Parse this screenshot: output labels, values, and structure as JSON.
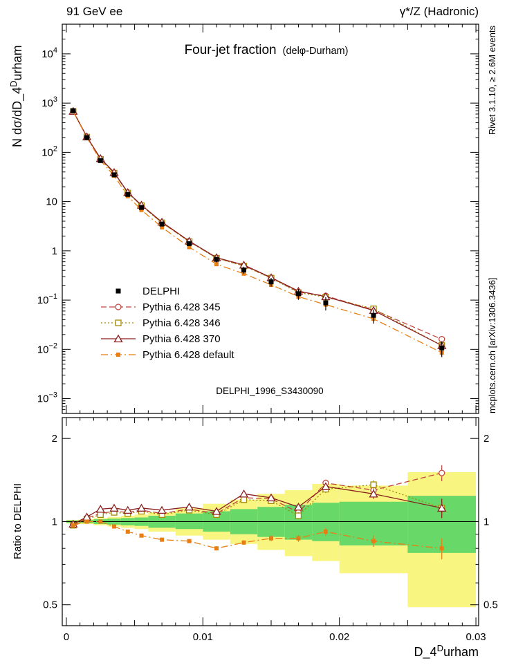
{
  "header": {
    "left": "91 GeV ee",
    "right": "γ*/Z (Hadronic)"
  },
  "title": {
    "main": "Four-jet fraction",
    "sub": "(delφ-Durham)"
  },
  "watermark": "DELPHI_1996_S3430090",
  "side_notes": {
    "top": "Rivet 3.1.10, ≥ 2.6M events",
    "bottom": "mcplots.cern.ch [arXiv:1306.3436]"
  },
  "axes": {
    "x_label": {
      "pre": "D_4",
      "sup": "D",
      "post": "urham"
    },
    "y_label": {
      "pre": "N dσ/dD_4",
      "sup": "D",
      "post": "urham"
    },
    "ratio_label": "Ratio to DELPHI"
  },
  "chart_data": {
    "type": "line",
    "title": "Four-jet fraction (delφ-Durham)",
    "xlabel": "D_4^Durham",
    "ylabel": "N dσ/dD_4^Durham",
    "ratio_ylabel": "Ratio to DELPHI",
    "legend_position": "middle-left",
    "grid": false,
    "xlim": [
      -0.0003,
      0.0302
    ],
    "x_ticks": [
      0,
      0.01,
      0.02,
      0.03
    ],
    "x_tick_labels": [
      "0",
      "0.01",
      "0.02",
      "0.03"
    ],
    "x_bin_edges": [
      0,
      0.001,
      0.002,
      0.003,
      0.004,
      0.005,
      0.006,
      0.008,
      0.01,
      0.012,
      0.014,
      0.016,
      0.018,
      0.02,
      0.025,
      0.03
    ],
    "x_centers": [
      0.0005,
      0.0015,
      0.0025,
      0.0035,
      0.0045,
      0.0055,
      0.007,
      0.009,
      0.011,
      0.013,
      0.015,
      0.017,
      0.019,
      0.0225,
      0.0275
    ],
    "delphi_label": "DELPHI",
    "main": {
      "ylog": true,
      "ylim": [
        0.0005,
        40000
      ],
      "y_tick_exponents": [
        4,
        3,
        2,
        1,
        0,
        -1,
        -2,
        -3
      ],
      "delphi": {
        "values": [
          700,
          200,
          68,
          35,
          14,
          7.6,
          3.5,
          1.4,
          0.67,
          0.41,
          0.235,
          0.135,
          0.088,
          0.049,
          0.0107
        ],
        "err_frac": [
          0.02,
          0.02,
          0.03,
          0.04,
          0.05,
          0.06,
          0.08,
          0.1,
          0.13,
          0.16,
          0.2,
          0.25,
          0.3,
          0.32,
          0.35
        ]
      }
    },
    "ratio": {
      "ylog": true,
      "ylim": [
        0.42,
        2.38
      ],
      "y_ticks": [
        2,
        1,
        0.5
      ],
      "bands": {
        "yellow": {
          "color": "#f9f581",
          "lo": [
            0.985,
            0.98,
            0.97,
            0.96,
            0.95,
            0.94,
            0.92,
            0.89,
            0.86,
            0.83,
            0.79,
            0.75,
            0.72,
            0.65,
            0.49
          ],
          "hi": [
            1.015,
            1.02,
            1.03,
            1.04,
            1.05,
            1.06,
            1.08,
            1.12,
            1.16,
            1.2,
            1.26,
            1.3,
            1.37,
            1.35,
            1.51
          ]
        },
        "green": {
          "color": "#68d968",
          "lo": [
            0.99,
            0.988,
            0.98,
            0.975,
            0.97,
            0.965,
            0.95,
            0.94,
            0.92,
            0.9,
            0.88,
            0.86,
            0.85,
            0.82,
            0.77
          ],
          "hi": [
            1.01,
            1.012,
            1.02,
            1.025,
            1.03,
            1.035,
            1.05,
            1.07,
            1.09,
            1.11,
            1.13,
            1.15,
            1.17,
            1.18,
            1.24
          ]
        }
      }
    },
    "series": [
      {
        "id": "pythia-345",
        "name": "Pythia 6.428 345",
        "color": "#c04540",
        "dash": "8,4",
        "marker": "circle-open",
        "ratio": [
          0.97,
          1.03,
          1.07,
          1.09,
          1.08,
          1.1,
          1.07,
          1.11,
          1.07,
          1.22,
          1.21,
          1.08,
          1.38,
          1.3,
          1.5
        ],
        "ratio_err": [
          0.01,
          0.01,
          0.01,
          0.01,
          0.01,
          0.012,
          0.012,
          0.015,
          0.018,
          0.02,
          0.025,
          0.03,
          0.04,
          0.05,
          0.1
        ]
      },
      {
        "id": "pythia-346",
        "name": "Pythia 6.428 346",
        "color": "#a08900",
        "dash": "2,3",
        "marker": "square-open",
        "ratio": [
          0.97,
          1.02,
          1.06,
          1.08,
          1.07,
          1.09,
          1.06,
          1.1,
          1.06,
          1.2,
          1.19,
          1.05,
          1.31,
          1.36,
          1.12
        ],
        "ratio_err": [
          0.01,
          0.01,
          0.01,
          0.01,
          0.01,
          0.012,
          0.012,
          0.015,
          0.018,
          0.02,
          0.025,
          0.03,
          0.04,
          0.05,
          0.09
        ]
      },
      {
        "id": "pythia-370",
        "name": "Pythia 6.428 370",
        "color": "#8a1f1f",
        "dash": "",
        "marker": "triangle-open",
        "ratio": [
          0.98,
          1.04,
          1.11,
          1.12,
          1.1,
          1.12,
          1.1,
          1.13,
          1.09,
          1.26,
          1.22,
          1.13,
          1.34,
          1.26,
          1.12
        ],
        "ratio_err": [
          0.01,
          0.01,
          0.01,
          0.01,
          0.01,
          0.012,
          0.012,
          0.015,
          0.018,
          0.02,
          0.025,
          0.03,
          0.04,
          0.05,
          0.09
        ]
      },
      {
        "id": "pythia-default",
        "name": "Pythia 6.428 default",
        "color": "#e87d12",
        "dash": "10,4,2,4",
        "marker": "square-fill",
        "ratio": [
          0.97,
          1.0,
          1.0,
          0.96,
          0.92,
          0.89,
          0.86,
          0.85,
          0.8,
          0.84,
          0.87,
          0.87,
          0.92,
          0.85,
          0.8
        ],
        "ratio_err": [
          0.005,
          0.005,
          0.007,
          0.008,
          0.009,
          0.01,
          0.01,
          0.012,
          0.014,
          0.016,
          0.02,
          0.025,
          0.03,
          0.04,
          0.07
        ]
      }
    ]
  }
}
